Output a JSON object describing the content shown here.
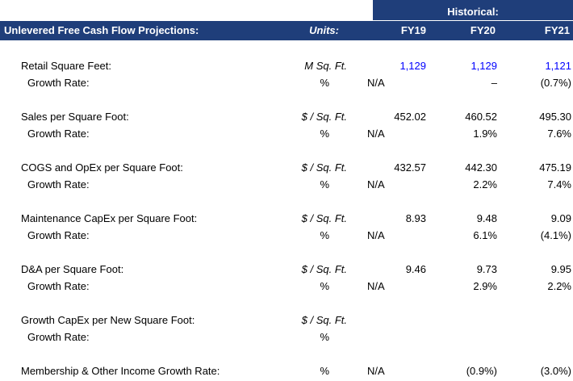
{
  "header": {
    "historical_label": "Historical:",
    "title": "Unlevered Free Cash Flow Projections:",
    "units_label": "Units:",
    "years": [
      "FY19",
      "FY20",
      "FY21"
    ]
  },
  "rows": {
    "retail_sq_ft": {
      "label": "Retail Square Feet:",
      "units": "M Sq. Ft.",
      "fy19": "1,129",
      "fy20": "1,129",
      "fy21": "1,121"
    },
    "retail_sq_ft_growth": {
      "label": "Growth Rate:",
      "units": "%",
      "na": "N/A",
      "fy20": "–",
      "fy21": "(0.7%)"
    },
    "sales_per_sq_ft": {
      "label": "Sales per Square Foot:",
      "units": "$ / Sq. Ft.",
      "fy19": "452.02",
      "fy20": "460.52",
      "fy21": "495.30"
    },
    "sales_per_sq_ft_growth": {
      "label": "Growth Rate:",
      "units": "%",
      "na": "N/A",
      "fy20": "1.9%",
      "fy21": "7.6%"
    },
    "cogs_opex_per_sq_ft": {
      "label": "COGS and OpEx per Square Foot:",
      "units": "$ / Sq. Ft.",
      "fy19": "432.57",
      "fy20": "442.30",
      "fy21": "475.19"
    },
    "cogs_opex_per_sq_ft_growth": {
      "label": "Growth Rate:",
      "units": "%",
      "na": "N/A",
      "fy20": "2.2%",
      "fy21": "7.4%"
    },
    "maint_capex_per_sq_ft": {
      "label": "Maintenance CapEx per Square Foot:",
      "units": "$ / Sq. Ft.",
      "fy19": "8.93",
      "fy20": "9.48",
      "fy21": "9.09"
    },
    "maint_capex_per_sq_ft_growth": {
      "label": "Growth Rate:",
      "units": "%",
      "na": "N/A",
      "fy20": "6.1%",
      "fy21": "(4.1%)"
    },
    "da_per_sq_ft": {
      "label": "D&A per Square Foot:",
      "units": "$ / Sq. Ft.",
      "fy19": "9.46",
      "fy20": "9.73",
      "fy21": "9.95"
    },
    "da_per_sq_ft_growth": {
      "label": "Growth Rate:",
      "units": "%",
      "na": "N/A",
      "fy20": "2.9%",
      "fy21": "2.2%"
    },
    "growth_capex_per_new_sq_ft": {
      "label": "Growth CapEx per New Square Foot:",
      "units": "$ / Sq. Ft."
    },
    "growth_capex_per_new_sq_ft_growth": {
      "label": "Growth Rate:",
      "units": "%"
    },
    "membership_income_growth": {
      "label": "Membership & Other Income Growth Rate:",
      "units": "%",
      "na": "N/A",
      "fy20": "(0.9%)",
      "fy21": "(3.0%)"
    }
  },
  "colors": {
    "header_bg": "#1f3e7a",
    "header_text": "#ffffff",
    "input_blue": "#0000ff"
  }
}
